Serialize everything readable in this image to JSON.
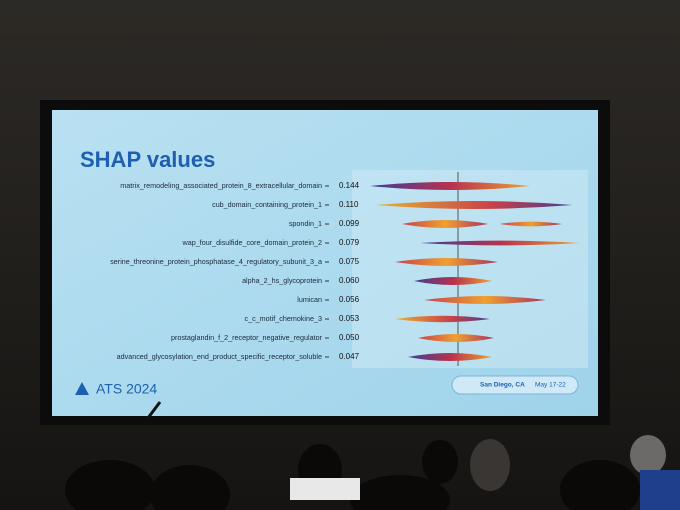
{
  "slide": {
    "title": "SHAP values",
    "features": [
      {
        "name": "matrix_remodeling_associated_protein_8_extracellular_domain",
        "value": "0.144"
      },
      {
        "name": "cub_domain_containing_protein_1",
        "value": "0.110"
      },
      {
        "name": "spondin_1",
        "value": "0.099"
      },
      {
        "name": "wap_four_disulfide_core_domain_protein_2",
        "value": "0.079"
      },
      {
        "name": "serine_threonine_protein_phosphatase_4_regulatory_subunit_3_a",
        "value": "0.075"
      },
      {
        "name": "alpha_2_hs_glycoprotein",
        "value": "0.060"
      },
      {
        "name": "lumican",
        "value": "0.056"
      },
      {
        "name": "c_c_motif_chemokine_3",
        "value": "0.053"
      },
      {
        "name": "prostaglandin_f_2_receptor_negative_regulator",
        "value": "0.050"
      },
      {
        "name": "advanced_glycosylation_end_product_specific_receptor_soluble",
        "value": "0.047"
      }
    ],
    "logo": "ATS 2024",
    "location": "San Diego, CA",
    "dates": "May 17-22"
  }
}
